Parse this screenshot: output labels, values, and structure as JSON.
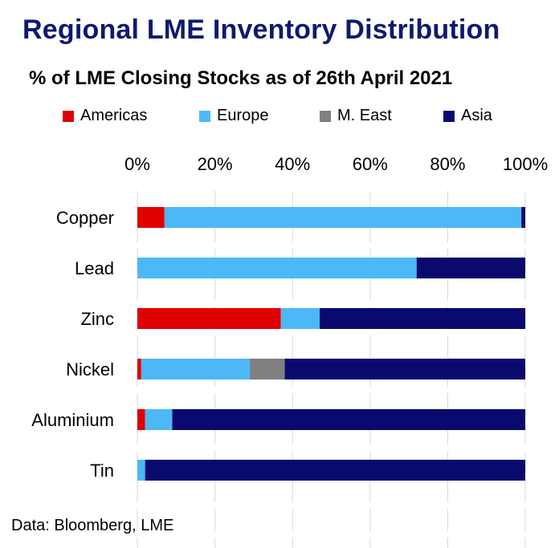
{
  "title": "Regional LME Inventory Distribution",
  "subtitle": "% of LME Closing Stocks as of 26th April 2021",
  "source": "Data: Bloomberg, LME",
  "colors": {
    "americas": "#e00000",
    "europe": "#4db8f7",
    "m_east": "#808080",
    "asia": "#0a0a6e"
  },
  "chart_data": {
    "type": "bar",
    "orientation": "horizontal",
    "stacked": true,
    "categories": [
      "Copper",
      "Lead",
      "Zinc",
      "Nickel",
      "Aluminium",
      "Tin"
    ],
    "series": [
      {
        "name": "Americas",
        "values": [
          7,
          0,
          37,
          1,
          2,
          0
        ]
      },
      {
        "name": "Europe",
        "values": [
          92,
          72,
          10,
          28,
          7,
          2
        ]
      },
      {
        "name": "M. East",
        "values": [
          0,
          0,
          0,
          9,
          0,
          0
        ]
      },
      {
        "name": "Asia",
        "values": [
          1,
          28,
          53,
          62,
          91,
          98
        ]
      }
    ],
    "xlim": [
      0,
      100
    ],
    "xticks": [
      "0%",
      "20%",
      "40%",
      "60%",
      "80%",
      "100%"
    ],
    "x_axis_position": "top",
    "legend_position": "top",
    "grid": true
  }
}
